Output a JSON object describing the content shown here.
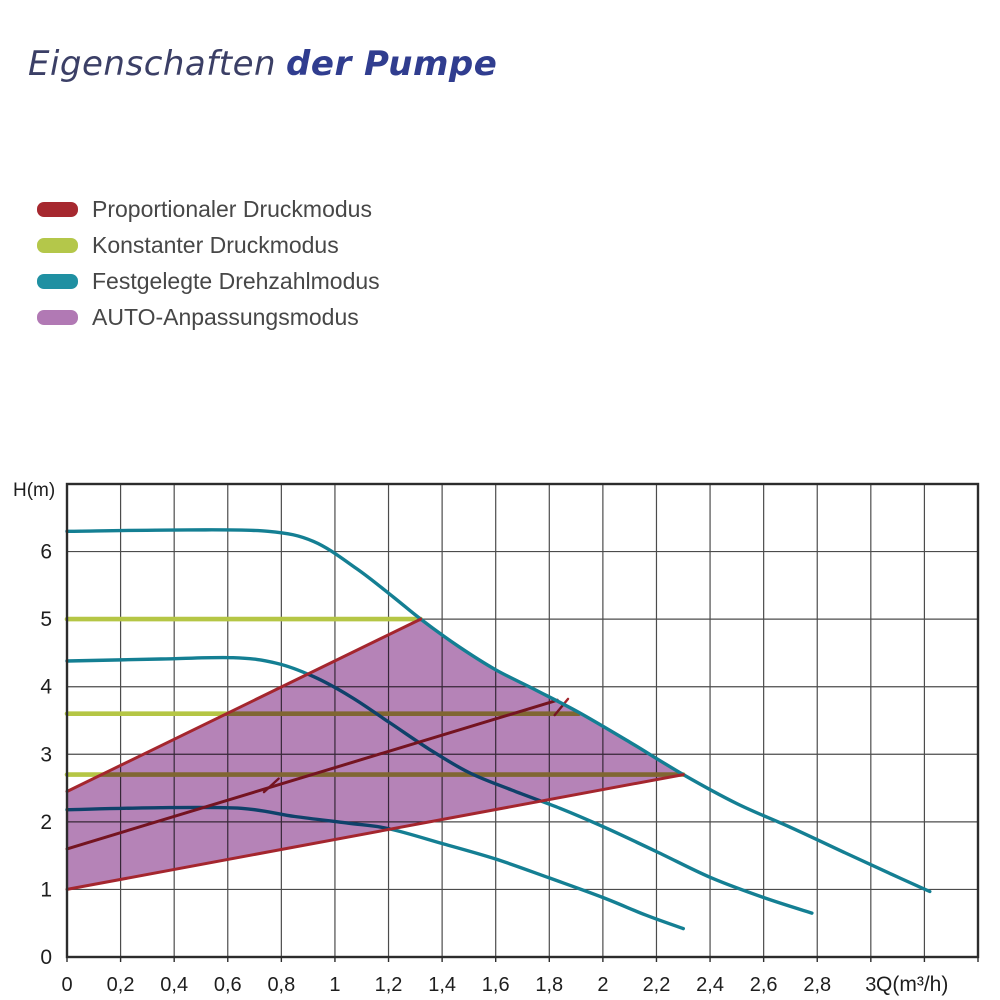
{
  "title": {
    "light": "Eigenschaften",
    "bold": "der Pumpe",
    "color_light": "#3b3f66",
    "color_bold": "#303d8f"
  },
  "legend": {
    "text_color": "#474747",
    "items": [
      {
        "id": "proportional-pressure",
        "label": "Proportionaler Druckmodus",
        "color": "#a6282f"
      },
      {
        "id": "constant-pressure",
        "label": "Konstanter Druckmodus",
        "color": "#b4c74a"
      },
      {
        "id": "fixed-speed",
        "label": "Festgelegte Drehzahlmodus",
        "color": "#1f90a2"
      },
      {
        "id": "auto-adapt",
        "label": "AUTO-Anpassungsmodus",
        "color": "#b179b4"
      }
    ]
  },
  "chart_data": {
    "type": "line",
    "title": "Eigenschaften der Pumpe",
    "xlabel": "Q(m³/h)",
    "ylabel": "H(m)",
    "xlim": [
      0,
      3.4
    ],
    "ylim": [
      0,
      7
    ],
    "x_gridstep": 0.2,
    "y_gridstep": 1,
    "grid_on": true,
    "grid_color": "#4c4c4c",
    "border_color": "#2c2c2c",
    "tick_text_color": "#1e1e1e",
    "x_ticks": [
      {
        "v": 0,
        "label": "0"
      },
      {
        "v": 0.2,
        "label": "0,2"
      },
      {
        "v": 0.4,
        "label": "0,4"
      },
      {
        "v": 0.6,
        "label": "0,6"
      },
      {
        "v": 0.8,
        "label": "0,8"
      },
      {
        "v": 1,
        "label": "1"
      },
      {
        "v": 1.2,
        "label": "1,2"
      },
      {
        "v": 1.4,
        "label": "1,4"
      },
      {
        "v": 1.6,
        "label": "1,6"
      },
      {
        "v": 1.8,
        "label": "1,8"
      },
      {
        "v": 2,
        "label": "2"
      },
      {
        "v": 2.2,
        "label": "2,2"
      },
      {
        "v": 2.4,
        "label": "2,4"
      },
      {
        "v": 2.6,
        "label": "2,6"
      },
      {
        "v": 2.8,
        "label": "2,8"
      },
      {
        "v": 3,
        "label": "3"
      }
    ],
    "y_ticks": [
      {
        "v": 0,
        "label": "0"
      },
      {
        "v": 1,
        "label": "1"
      },
      {
        "v": 2,
        "label": "2"
      },
      {
        "v": 3,
        "label": "3"
      },
      {
        "v": 4,
        "label": "4"
      },
      {
        "v": 5,
        "label": "5"
      },
      {
        "v": 6,
        "label": "6"
      }
    ],
    "series": [
      {
        "name": "fixed-speed-curve-iii",
        "mode": "fixed-speed",
        "color": "#147f93",
        "width": 3.4,
        "smooth": true,
        "points": [
          [
            0,
            6.3
          ],
          [
            0.45,
            6.32
          ],
          [
            0.75,
            6.3
          ],
          [
            0.92,
            6.15
          ],
          [
            1.08,
            5.75
          ],
          [
            1.22,
            5.32
          ],
          [
            1.32,
            5.0
          ],
          [
            1.46,
            4.6
          ],
          [
            1.6,
            4.25
          ],
          [
            1.75,
            3.95
          ],
          [
            1.91,
            3.62
          ],
          [
            2.1,
            3.18
          ],
          [
            2.3,
            2.7
          ],
          [
            2.5,
            2.27
          ],
          [
            2.7,
            1.92
          ],
          [
            2.9,
            1.55
          ],
          [
            3.08,
            1.22
          ],
          [
            3.22,
            0.97
          ]
        ]
      },
      {
        "name": "fixed-speed-curve-ii",
        "mode": "fixed-speed",
        "color": "#147f93",
        "width": 3.4,
        "smooth": true,
        "points": [
          [
            0,
            4.38
          ],
          [
            0.35,
            4.41
          ],
          [
            0.62,
            4.43
          ],
          [
            0.78,
            4.35
          ],
          [
            0.92,
            4.15
          ],
          [
            1.06,
            3.85
          ],
          [
            1.2,
            3.48
          ],
          [
            1.35,
            3.08
          ],
          [
            1.5,
            2.73
          ],
          [
            1.66,
            2.47
          ],
          [
            1.84,
            2.2
          ],
          [
            2.0,
            1.93
          ],
          [
            2.2,
            1.56
          ],
          [
            2.4,
            1.18
          ],
          [
            2.6,
            0.88
          ],
          [
            2.78,
            0.65
          ]
        ]
      },
      {
        "name": "fixed-speed-curve-i",
        "mode": "fixed-speed",
        "color": "#147f93",
        "width": 3.4,
        "smooth": true,
        "points": [
          [
            0,
            2.18
          ],
          [
            0.35,
            2.21
          ],
          [
            0.65,
            2.2
          ],
          [
            0.85,
            2.08
          ],
          [
            1.05,
            1.98
          ],
          [
            1.2,
            1.9
          ],
          [
            1.4,
            1.68
          ],
          [
            1.6,
            1.45
          ],
          [
            1.8,
            1.17
          ],
          [
            2.0,
            0.88
          ],
          [
            2.16,
            0.62
          ],
          [
            2.3,
            0.42
          ]
        ]
      },
      {
        "name": "constant-pressure-line-cp3",
        "mode": "constant-pressure",
        "color": "#b5c645",
        "width": 4.6,
        "smooth": false,
        "points": [
          [
            0,
            5.0
          ],
          [
            1.32,
            5.0
          ]
        ]
      },
      {
        "name": "constant-pressure-line-cp2",
        "mode": "constant-pressure",
        "color": "#b5c645",
        "width": 4.6,
        "smooth": false,
        "points": [
          [
            0,
            3.6
          ],
          [
            1.91,
            3.6
          ]
        ]
      },
      {
        "name": "constant-pressure-line-cp1",
        "mode": "constant-pressure",
        "color": "#b5c645",
        "width": 4.6,
        "smooth": false,
        "points": [
          [
            0,
            2.7
          ],
          [
            2.3,
            2.7
          ]
        ]
      },
      {
        "name": "proportional-pressure-line-pp3",
        "mode": "proportional-pressure",
        "color": "#a4262e",
        "width": 3,
        "smooth": false,
        "points": [
          [
            0,
            2.45
          ],
          [
            1.32,
            5.0
          ]
        ]
      },
      {
        "name": "proportional-pressure-line-pp2",
        "mode": "proportional-pressure",
        "color": "#a4262e",
        "width": 3,
        "smooth": false,
        "points": [
          [
            0,
            1.6
          ],
          [
            1.83,
            3.8
          ]
        ]
      },
      {
        "name": "proportional-pressure-line-pp1",
        "mode": "proportional-pressure",
        "color": "#a4262e",
        "width": 3,
        "smooth": false,
        "points": [
          [
            0,
            1.0
          ],
          [
            2.3,
            2.7
          ]
        ]
      }
    ],
    "auto_region": {
      "name": "auto-adapt-region",
      "fill": "#b583b7",
      "points": [
        [
          0,
          1.0
        ],
        [
          0,
          2.45
        ],
        [
          1.32,
          5.0
        ],
        [
          1.46,
          4.6
        ],
        [
          1.6,
          4.25
        ],
        [
          1.75,
          3.95
        ],
        [
          1.91,
          3.62
        ],
        [
          2.1,
          3.18
        ],
        [
          2.3,
          2.7
        ]
      ]
    },
    "marks": [
      {
        "name": "red-tick-mark-1",
        "color": "#a4262e",
        "width": 2.4,
        "points": [
          [
            0.735,
            2.44
          ],
          [
            0.79,
            2.64
          ]
        ]
      },
      {
        "name": "red-tick-mark-2",
        "color": "#a4262e",
        "width": 2.4,
        "points": [
          [
            1.82,
            3.58
          ],
          [
            1.87,
            3.82
          ]
        ]
      }
    ]
  }
}
